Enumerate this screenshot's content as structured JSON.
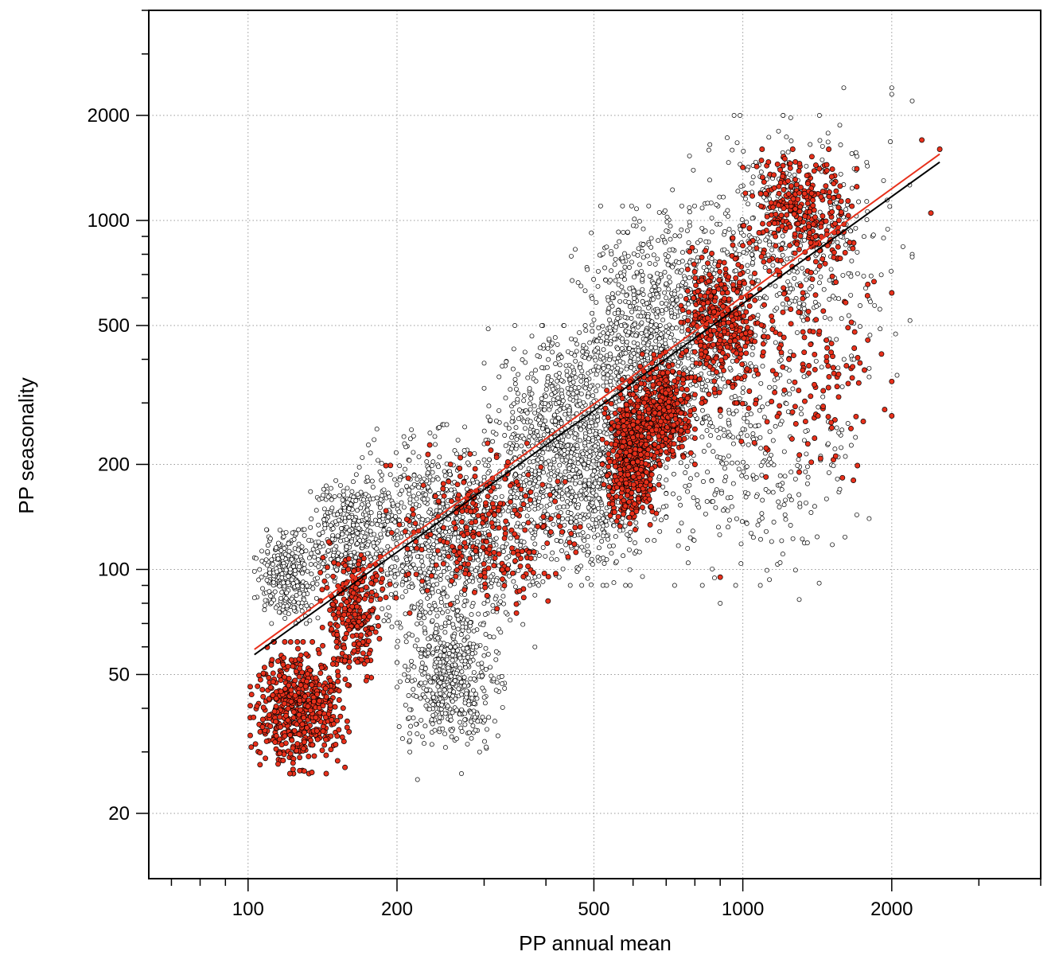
{
  "chart_data": {
    "type": "scatter",
    "title": "",
    "xlabel": "PP annual mean",
    "ylabel": "PP seasonality",
    "x_scale": "log",
    "y_scale": "log",
    "xlim": [
      63,
      4000
    ],
    "ylim": [
      13,
      4000
    ],
    "x_tick_labels": [
      "100",
      "200",
      "500",
      "1000",
      "2000"
    ],
    "y_tick_labels": [
      "20",
      "50",
      "100",
      "200",
      "500",
      "1000",
      "2000"
    ],
    "grid": true,
    "legend": "none",
    "colors": {
      "open_points": "#ffffff",
      "red_points": "#e8301b",
      "red_fit_line": "#e8301b",
      "black_fit_line": "#000000"
    },
    "series": [
      {
        "marker": "open-circle",
        "color": "#ffffff",
        "clusters": [
          {
            "x_range": [
              103,
              140
            ],
            "y_range": [
              70,
              130
            ],
            "count": 320
          },
          {
            "x_range": [
              130,
              200
            ],
            "y_range": [
              85,
              190
            ],
            "count": 320
          },
          {
            "x_range": [
              200,
              330
            ],
            "y_range": [
              30,
              80
            ],
            "count": 520
          },
          {
            "x_range": [
              160,
              380
            ],
            "y_range": [
              60,
              260
            ],
            "count": 900
          },
          {
            "x_range": [
              300,
              700
            ],
            "y_range": [
              90,
              500
            ],
            "count": 1300
          },
          {
            "x_range": [
              450,
              1000
            ],
            "y_range": [
              200,
              1100
            ],
            "count": 900
          },
          {
            "x_range": [
              700,
              2200
            ],
            "y_range": [
              400,
              2000
            ],
            "count": 500
          },
          {
            "x_range": [
              600,
              1800
            ],
            "y_range": [
              90,
              500
            ],
            "count": 350
          }
        ],
        "sample_points": [
          [
            1600,
            2400
          ],
          [
            2000,
            2300
          ],
          [
            1300,
            82
          ],
          [
            900,
            80
          ],
          [
            270,
            26
          ],
          [
            220,
            25
          ],
          [
            2050,
            360
          ],
          [
            2000,
            2400
          ],
          [
            2200,
            2200
          ]
        ]
      },
      {
        "marker": "filled-circle",
        "color": "#e8301b",
        "clusters": [
          {
            "x_range": [
              101,
              160
            ],
            "y_range": [
              26,
              62
            ],
            "count": 550
          },
          {
            "x_range": [
              140,
              190
            ],
            "y_range": [
              48,
              120
            ],
            "count": 260
          },
          {
            "x_range": [
              190,
              480
            ],
            "y_range": [
              75,
              230
            ],
            "count": 280
          },
          {
            "x_range": [
              520,
              680
            ],
            "y_range": [
              130,
              350
            ],
            "count": 520
          },
          {
            "x_range": [
              600,
              800
            ],
            "y_range": [
              200,
              420
            ],
            "count": 380
          },
          {
            "x_range": [
              750,
              1100
            ],
            "y_range": [
              300,
              900
            ],
            "count": 350
          },
          {
            "x_range": [
              1000,
              1700
            ],
            "y_range": [
              700,
              1600
            ],
            "count": 300
          },
          {
            "x_range": [
              900,
              2000
            ],
            "y_range": [
              180,
              900
            ],
            "count": 160
          }
        ],
        "sample_points": [
          [
            2500,
            1600
          ],
          [
            2400,
            1050
          ],
          [
            2000,
            620
          ],
          [
            900,
            95
          ],
          [
            1300,
            190
          ],
          [
            2300,
            1700
          ]
        ]
      }
    ],
    "fit_lines": [
      {
        "color": "#e8301b",
        "x": [
          103,
          2500
        ],
        "y": [
          59,
          1550
        ]
      },
      {
        "color": "#000000",
        "x": [
          103,
          2500
        ],
        "y": [
          57,
          1470
        ]
      }
    ]
  }
}
